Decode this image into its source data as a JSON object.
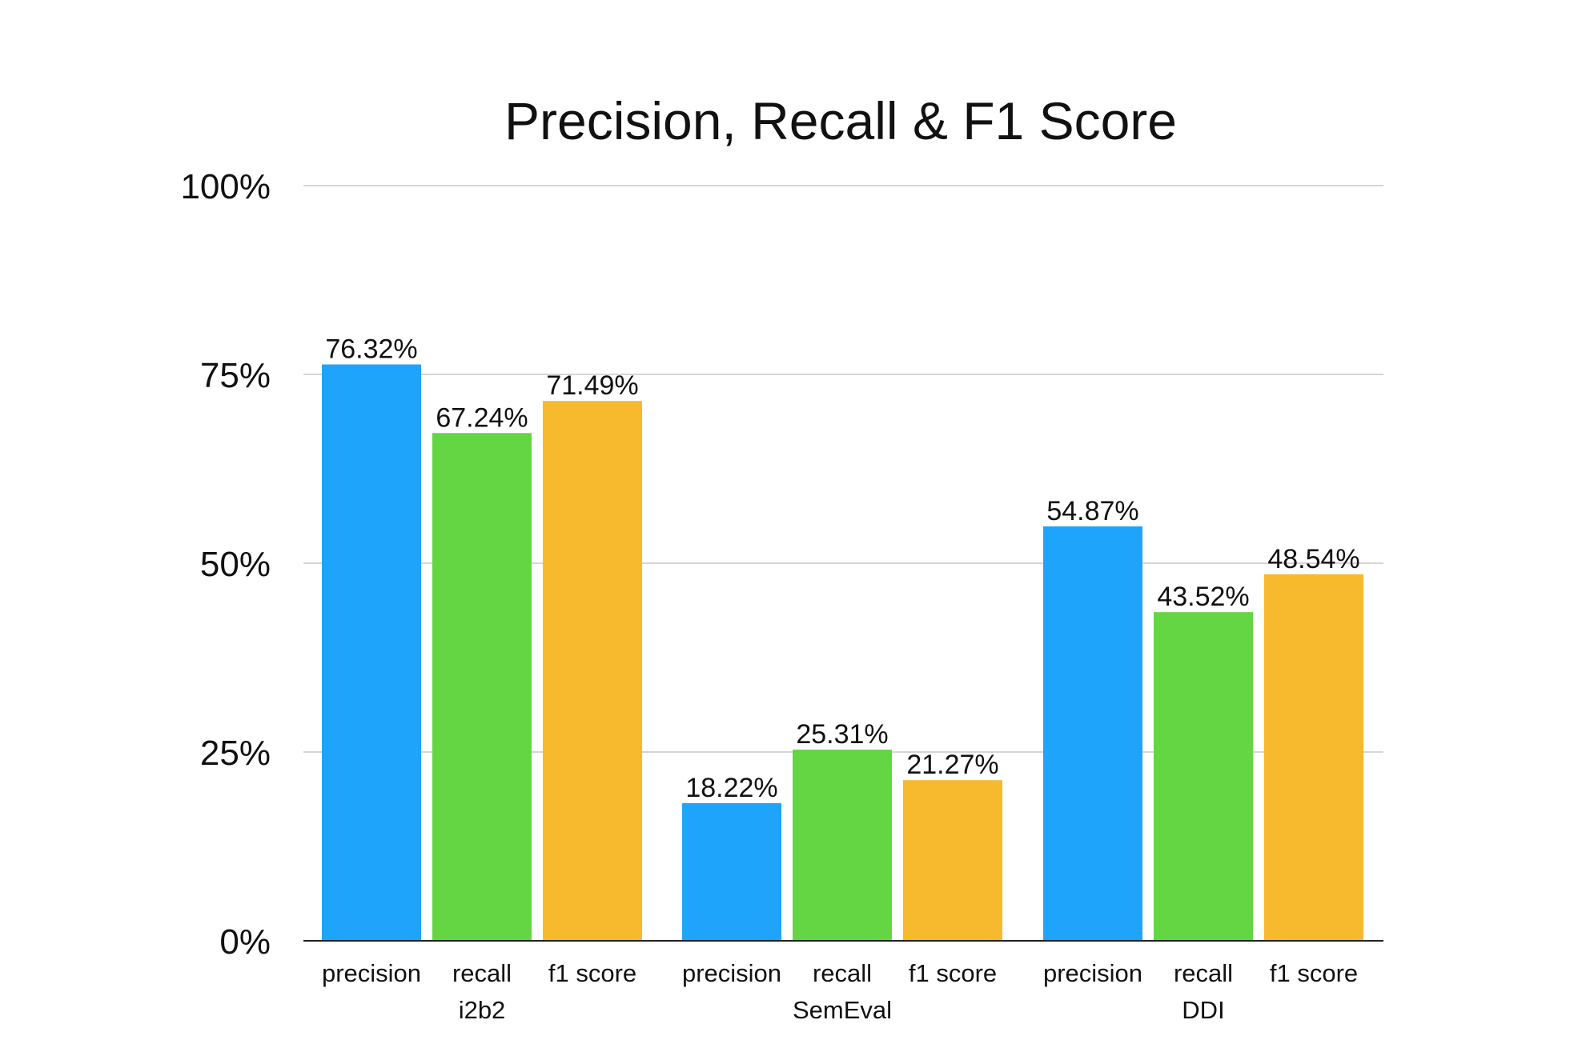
{
  "chart_data": {
    "type": "bar",
    "title": "Precision, Recall & F1 Score",
    "xlabel": "",
    "ylabel": "",
    "ylim": [
      0,
      100
    ],
    "yticks": [
      0,
      25,
      50,
      75,
      100
    ],
    "ytick_labels": [
      "0%",
      "25%",
      "50%",
      "75%",
      "100%"
    ],
    "grid": true,
    "legend": "none",
    "groups": [
      {
        "name": "i2b2",
        "bars": [
          {
            "category": "precision",
            "value": 76.32,
            "label": "76.32%"
          },
          {
            "category": "recall",
            "value": 67.24,
            "label": "67.24%"
          },
          {
            "category": "f1 score",
            "value": 71.49,
            "label": "71.49%"
          }
        ]
      },
      {
        "name": "SemEval",
        "bars": [
          {
            "category": "precision",
            "value": 18.22,
            "label": "18.22%"
          },
          {
            "category": "recall",
            "value": 25.31,
            "label": "25.31%"
          },
          {
            "category": "f1 score",
            "value": 21.27,
            "label": "21.27%"
          }
        ]
      },
      {
        "name": "DDI",
        "bars": [
          {
            "category": "precision",
            "value": 54.87,
            "label": "54.87%"
          },
          {
            "category": "recall",
            "value": 43.52,
            "label": "43.52%"
          },
          {
            "category": "f1 score",
            "value": 48.54,
            "label": "48.54%"
          }
        ]
      }
    ],
    "colors": {
      "precision": "#1EA4FA",
      "recall": "#64D644",
      "f1 score": "#F7B92E"
    }
  }
}
